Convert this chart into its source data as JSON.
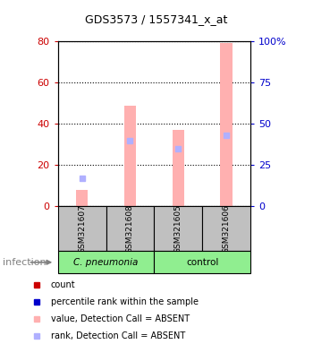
{
  "title": "GDS3573 / 1557341_x_at",
  "samples": [
    "GSM321607",
    "GSM321608",
    "GSM321605",
    "GSM321606"
  ],
  "bar_color_absent": "#ffb0b0",
  "rank_absent_color": "#b0b0ff",
  "values_absent": [
    8,
    49,
    37,
    79
  ],
  "rank_absent": [
    17,
    40,
    35,
    43
  ],
  "ylim_left": [
    0,
    80
  ],
  "ylim_right": [
    0,
    100
  ],
  "yticks_left": [
    0,
    20,
    40,
    60,
    80
  ],
  "yticks_right": [
    0,
    25,
    50,
    75,
    100
  ],
  "ytick_labels_left": [
    "0",
    "20",
    "40",
    "60",
    "80"
  ],
  "ytick_labels_right": [
    "0",
    "25",
    "50",
    "75",
    "100%"
  ],
  "left_ytick_color": "#cc0000",
  "right_ytick_color": "#0000cc",
  "group_label": "infection",
  "group1_name": "C. pneumonia",
  "group2_name": "control",
  "group1_color": "#90ee90",
  "group2_color": "#90ee90",
  "sample_box_color": "#c0c0c0",
  "legend_items": [
    {
      "label": "count",
      "color": "#cc0000"
    },
    {
      "label": "percentile rank within the sample",
      "color": "#0000cc"
    },
    {
      "label": "value, Detection Call = ABSENT",
      "color": "#ffb0b0"
    },
    {
      "label": "rank, Detection Call = ABSENT",
      "color": "#b0b0ff"
    }
  ]
}
